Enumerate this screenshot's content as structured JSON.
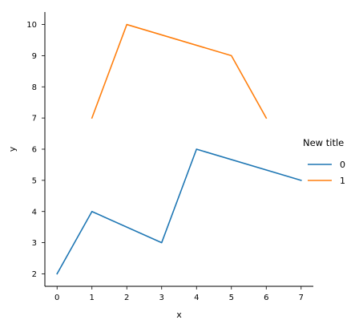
{
  "chart_data": {
    "type": "line",
    "xlabel": "x",
    "ylabel": "y",
    "xlim": [
      -0.35,
      7.35
    ],
    "ylim": [
      1.6,
      10.4
    ],
    "x_ticks": [
      0,
      1,
      2,
      3,
      4,
      5,
      6,
      7
    ],
    "y_ticks": [
      2,
      3,
      4,
      5,
      6,
      7,
      8,
      9,
      10
    ],
    "grid": false,
    "legend": {
      "title": "New title",
      "placement": "right"
    },
    "series": [
      {
        "name": "0",
        "color": "#1f77b4",
        "x": [
          0,
          1,
          3,
          4,
          7
        ],
        "y": [
          2,
          4,
          3,
          6,
          5
        ]
      },
      {
        "name": "1",
        "color": "#ff7f0e",
        "x": [
          1,
          2,
          5,
          6
        ],
        "y": [
          7,
          10,
          9,
          7
        ]
      }
    ]
  }
}
